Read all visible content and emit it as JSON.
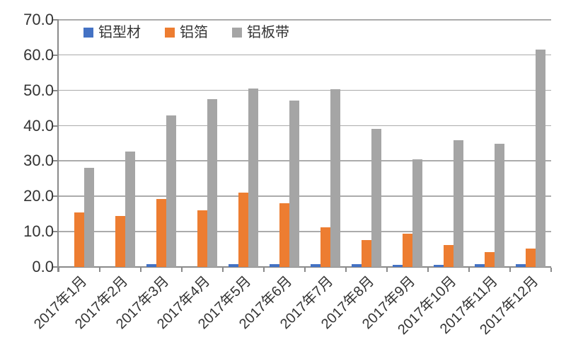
{
  "chart_data": {
    "type": "bar",
    "title": "",
    "categories": [
      "2017年1月",
      "2017年2月",
      "2017年3月",
      "2017年4月",
      "2017年5月",
      "2017年6月",
      "2017年7月",
      "2017年8月",
      "2017年9月",
      "2017年10月",
      "2017年11月",
      "2017年12月"
    ],
    "series": [
      {
        "name": "铝型材",
        "color": "#4472C4",
        "values": [
          0,
          0,
          0.8,
          0,
          0.9,
          0.8,
          0.9,
          0.8,
          0.7,
          0.7,
          0.9,
          0.9
        ]
      },
      {
        "name": "铝箔",
        "color": "#ED7D31",
        "values": [
          15.4,
          14.4,
          19.2,
          16.1,
          21.0,
          18.0,
          11.2,
          7.7,
          9.4,
          6.2,
          4.2,
          5.3
        ]
      },
      {
        "name": "铝板带",
        "color": "#A5A5A5",
        "values": [
          28.1,
          32.7,
          43.0,
          47.5,
          50.6,
          47.1,
          50.4,
          39.2,
          30.4,
          35.9,
          34.8,
          61.5
        ]
      }
    ],
    "xlabel": "",
    "ylabel": "",
    "ylim": [
      0,
      70
    ],
    "ytick_step": 10,
    "ytick_labels": [
      "0.0",
      "10.0",
      "20.0",
      "30.0",
      "40.0",
      "50.0",
      "60.0",
      "70.0"
    ],
    "grid": true,
    "legend_position": "top-inside-horizontal",
    "colors": {
      "background": "#ffffff",
      "axis": "#8a8a8a",
      "gridline": "#ababab",
      "text": "#333333"
    }
  }
}
